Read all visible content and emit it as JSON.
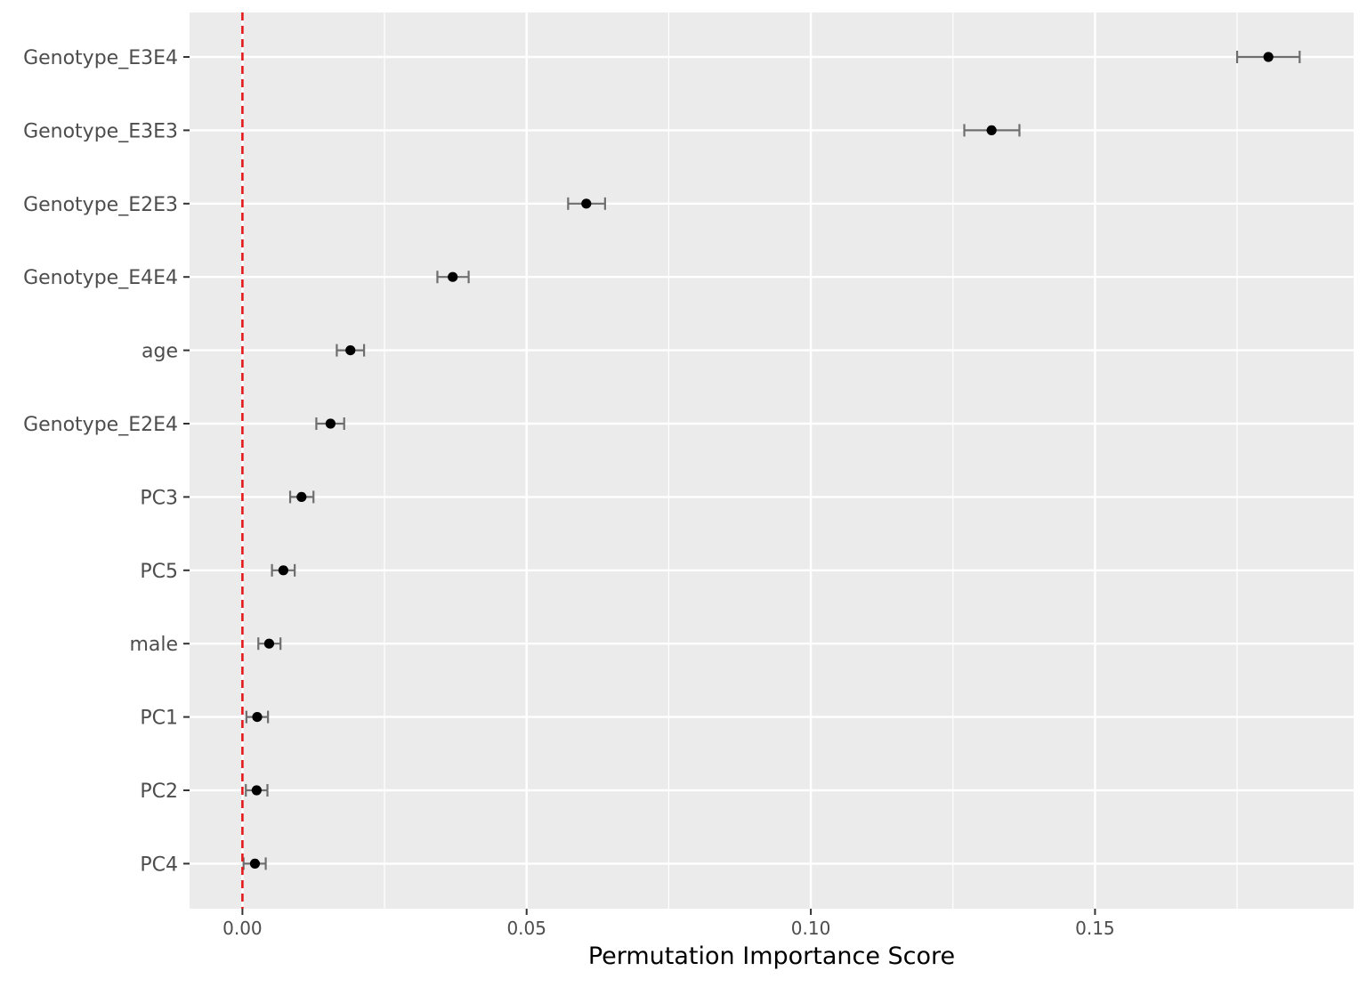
{
  "chart_data": {
    "type": "scatter",
    "xlabel": "Permutation Importance Score",
    "ylabel": "",
    "xlim": [
      -0.0093,
      0.1955
    ],
    "x_ticks": [
      {
        "value": 0.0,
        "label": "0.00"
      },
      {
        "value": 0.05,
        "label": "0.05"
      },
      {
        "value": 0.1,
        "label": "0.10"
      },
      {
        "value": 0.15,
        "label": "0.15"
      }
    ],
    "x_minor_ticks": [
      0.025,
      0.075,
      0.125,
      0.175
    ],
    "grid": true,
    "legend": "none",
    "reference_line": {
      "x": 0.0,
      "style": "dashed",
      "color": "#e31a1c"
    },
    "points": [
      {
        "label": "Genotype_E3E4",
        "value": 0.1805,
        "low": 0.175,
        "high": 0.186
      },
      {
        "label": "Genotype_E3E3",
        "value": 0.1318,
        "low": 0.127,
        "high": 0.1367
      },
      {
        "label": "Genotype_E2E3",
        "value": 0.0605,
        "low": 0.0573,
        "high": 0.0638
      },
      {
        "label": "Genotype_E4E4",
        "value": 0.037,
        "low": 0.0343,
        "high": 0.0398
      },
      {
        "label": "age",
        "value": 0.019,
        "low": 0.0166,
        "high": 0.0214
      },
      {
        "label": "Genotype_E2E4",
        "value": 0.0155,
        "low": 0.013,
        "high": 0.0179
      },
      {
        "label": "PC3",
        "value": 0.0104,
        "low": 0.0084,
        "high": 0.0125
      },
      {
        "label": "PC5",
        "value": 0.0072,
        "low": 0.0052,
        "high": 0.0092
      },
      {
        "label": "male",
        "value": 0.0047,
        "low": 0.0028,
        "high": 0.0067
      },
      {
        "label": "PC1",
        "value": 0.0026,
        "low": 0.0007,
        "high": 0.0045
      },
      {
        "label": "PC2",
        "value": 0.0025,
        "low": 0.0006,
        "high": 0.0044
      },
      {
        "label": "PC4",
        "value": 0.0022,
        "low": 0.0002,
        "high": 0.0041
      }
    ]
  },
  "colors": {
    "panel_bg": "#ebebeb",
    "grid_major": "#ffffff",
    "point": "#000000",
    "errorbar": "#6e6e6e",
    "ref_line": "#e31a1c",
    "tick": "#333333"
  }
}
